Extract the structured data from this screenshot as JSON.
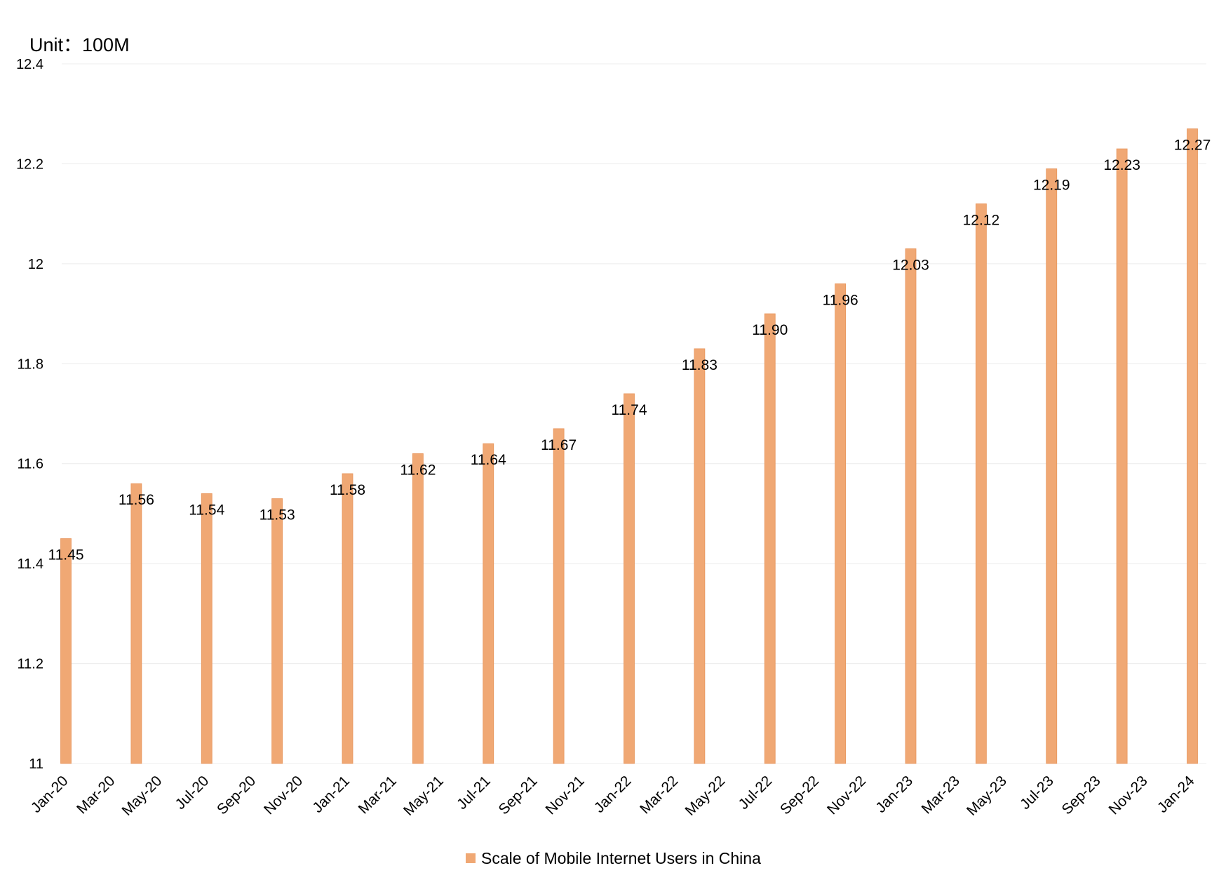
{
  "chart_data": {
    "type": "bar",
    "unit_label": "Unit：100M",
    "title": "",
    "xlabel": "",
    "ylabel": "",
    "ylim": [
      11,
      12.4
    ],
    "y_ticks": [
      "11",
      "11.2",
      "11.4",
      "11.6",
      "11.8",
      "12",
      "12.2",
      "12.4"
    ],
    "y_tick_values": [
      11,
      11.2,
      11.4,
      11.6,
      11.8,
      12,
      12.2,
      12.4
    ],
    "categories": [
      "Jan-20",
      "Mar-20",
      "May-20",
      "Jul-20",
      "Sep-20",
      "Nov-20",
      "Jan-21",
      "Mar-21",
      "May-21",
      "Jul-21",
      "Sep-21",
      "Nov-21",
      "Jan-22",
      "Mar-22",
      "May-22",
      "Jul-22",
      "Sep-22",
      "Nov-22",
      "Jan-23",
      "Mar-23",
      "May-23",
      "Jul-23",
      "Sep-23",
      "Nov-23",
      "Jan-24"
    ],
    "series": [
      {
        "name": "Scale of Mobile Internet Users in China",
        "color": "#f0a874",
        "values": [
          {
            "x": "Jan-20",
            "y": 11.45,
            "label": "11.45"
          },
          {
            "x": "Apr-20",
            "y": 11.56,
            "label": "11.56"
          },
          {
            "x": "Jul-20",
            "y": 11.54,
            "label": "11.54"
          },
          {
            "x": "Oct-20",
            "y": 11.53,
            "label": "11.53"
          },
          {
            "x": "Jan-21",
            "y": 11.58,
            "label": "11.58"
          },
          {
            "x": "Apr-21",
            "y": 11.62,
            "label": "11.62"
          },
          {
            "x": "Jul-21",
            "y": 11.64,
            "label": "11.64"
          },
          {
            "x": "Oct-21",
            "y": 11.67,
            "label": "11.67"
          },
          {
            "x": "Jan-22",
            "y": 11.74,
            "label": "11.74"
          },
          {
            "x": "Apr-22",
            "y": 11.83,
            "label": "11.83"
          },
          {
            "x": "Jul-22",
            "y": 11.9,
            "label": "11.90"
          },
          {
            "x": "Oct-22",
            "y": 11.96,
            "label": "11.96"
          },
          {
            "x": "Jan-23",
            "y": 12.03,
            "label": "12.03"
          },
          {
            "x": "Apr-23",
            "y": 12.12,
            "label": "12.12"
          },
          {
            "x": "Jul-23",
            "y": 12.19,
            "label": "12.19"
          },
          {
            "x": "Oct-23",
            "y": 12.23,
            "label": "12.23"
          },
          {
            "x": "Jan-24",
            "y": 12.27,
            "label": "12.27"
          }
        ]
      }
    ],
    "grid": true,
    "legend_position": "bottom-center"
  }
}
